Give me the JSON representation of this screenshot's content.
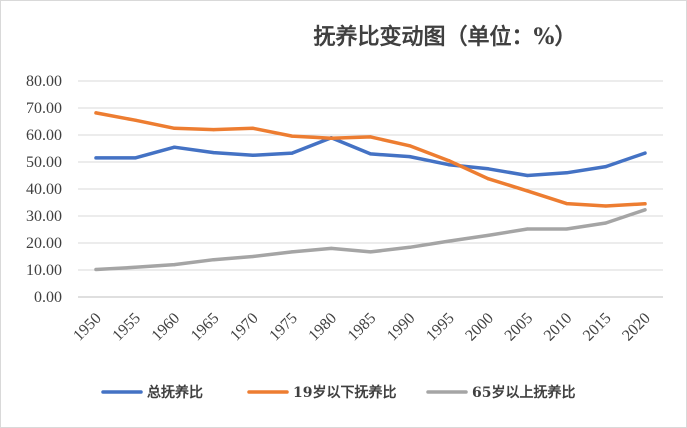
{
  "chart_data": {
    "type": "line",
    "title": "抚养比变动图（单位：%）",
    "categories": [
      "1950",
      "1955",
      "1960",
      "1965",
      "1970",
      "1975",
      "1980",
      "1985",
      "1990",
      "1995",
      "2000",
      "2005",
      "2010",
      "2015",
      "2020"
    ],
    "ylim": [
      0,
      80
    ],
    "yticks": [
      "0.00",
      "10.00",
      "20.00",
      "30.00",
      "40.00",
      "50.00",
      "60.00",
      "70.00",
      "80.00"
    ],
    "grid": true,
    "legend_position": "bottom",
    "series": [
      {
        "name": "总抚养比",
        "color": "#4472c4",
        "values": [
          51.5,
          51.5,
          55.5,
          53.5,
          52.5,
          53.3,
          59.0,
          53.0,
          52.0,
          49.0,
          47.5,
          45.0,
          46.0,
          48.3,
          53.3
        ]
      },
      {
        "name": "19岁以下抚养比",
        "color": "#ed7d31",
        "values": [
          68.2,
          65.5,
          62.5,
          62.0,
          62.5,
          59.6,
          58.8,
          59.3,
          56.0,
          50.5,
          43.8,
          39.3,
          34.6,
          33.7,
          34.5
        ]
      },
      {
        "name": "65岁以上抚养比",
        "color": "#a5a5a5",
        "values": [
          10.2,
          11.0,
          12.0,
          13.8,
          15.0,
          16.7,
          18.0,
          16.7,
          18.4,
          20.7,
          22.8,
          25.2,
          25.2,
          27.4,
          32.3
        ]
      }
    ]
  }
}
